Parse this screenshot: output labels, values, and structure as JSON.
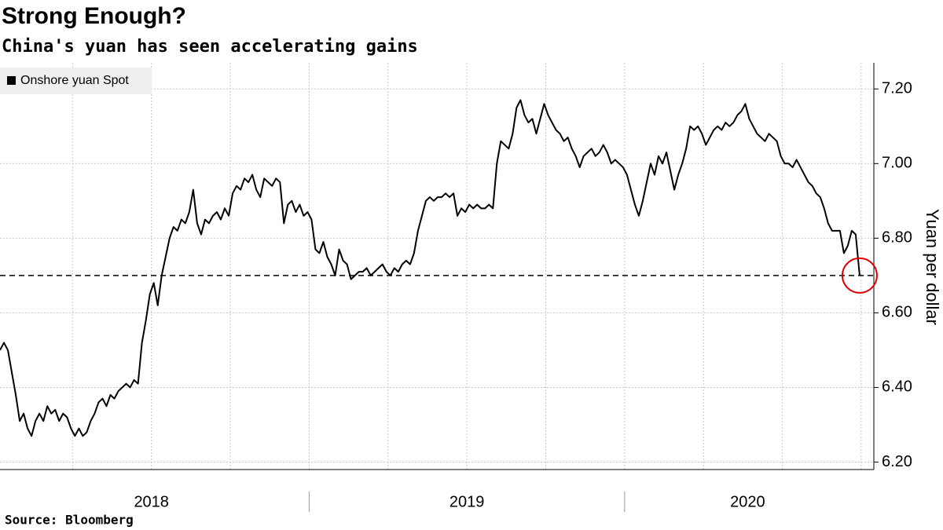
{
  "chart_data": {
    "type": "line",
    "title": "Strong Enough?",
    "subtitle": "China's yuan has seen accelerating gains",
    "source": "Source: Bloomberg",
    "y_axis_label": "Yuan per dollar",
    "legend": "top-left",
    "grid": true,
    "reference_line": 6.7,
    "highlight_color": "#e00000",
    "xlim": [
      2018.02,
      2020.79
    ],
    "xticks": [
      {
        "value": 2018.5,
        "label": "2018"
      },
      {
        "value": 2019.5,
        "label": "2019"
      },
      {
        "value": 2020.39,
        "label": "2020"
      }
    ],
    "year_boundaries": [
      2019,
      2020
    ],
    "xgrid": [
      2018.25,
      2018.5,
      2018.75,
      2019,
      2019.25,
      2019.5,
      2019.75,
      2020,
      2020.25,
      2020.5,
      2020.75
    ],
    "ylim": [
      6.18,
      7.27
    ],
    "yticks": [
      {
        "value": 6.2,
        "label": "6.20"
      },
      {
        "value": 6.4,
        "label": "6.40"
      },
      {
        "value": 6.6,
        "label": "6.60"
      },
      {
        "value": 6.8,
        "label": "6.80"
      },
      {
        "value": 7.0,
        "label": "7.00"
      },
      {
        "value": 7.2,
        "label": "7.20"
      }
    ],
    "x": [
      2018.02,
      2018.0325,
      2018.045,
      2018.0575,
      2018.07,
      2018.0825,
      2018.095,
      2018.1075,
      2018.12,
      2018.1325,
      2018.145,
      2018.1575,
      2018.17,
      2018.1825,
      2018.195,
      2018.2075,
      2018.22,
      2018.2325,
      2018.245,
      2018.2575,
      2018.27,
      2018.2825,
      2018.295,
      2018.3075,
      2018.32,
      2018.3325,
      2018.345,
      2018.3575,
      2018.37,
      2018.3825,
      2018.395,
      2018.4075,
      2018.42,
      2018.4325,
      2018.445,
      2018.4575,
      2018.47,
      2018.4825,
      2018.495,
      2018.5075,
      2018.52,
      2018.5325,
      2018.545,
      2018.5575,
      2018.57,
      2018.5825,
      2018.595,
      2018.6075,
      2018.62,
      2018.6325,
      2018.645,
      2018.6575,
      2018.67,
      2018.6825,
      2018.695,
      2018.7075,
      2018.72,
      2018.7325,
      2018.745,
      2018.7575,
      2018.77,
      2018.7825,
      2018.795,
      2018.8075,
      2018.82,
      2018.8325,
      2018.845,
      2018.8575,
      2018.87,
      2018.8825,
      2018.895,
      2018.9075,
      2018.92,
      2018.9325,
      2018.945,
      2018.9575,
      2018.97,
      2018.9825,
      2018.995,
      2019.0075,
      2019.02,
      2019.0325,
      2019.045,
      2019.0575,
      2019.07,
      2019.0825,
      2019.095,
      2019.1075,
      2019.12,
      2019.1325,
      2019.145,
      2019.1575,
      2019.17,
      2019.1825,
      2019.195,
      2019.2075,
      2019.22,
      2019.2325,
      2019.245,
      2019.2575,
      2019.27,
      2019.2825,
      2019.295,
      2019.3075,
      2019.32,
      2019.3325,
      2019.345,
      2019.3575,
      2019.37,
      2019.3825,
      2019.395,
      2019.4075,
      2019.42,
      2019.4325,
      2019.445,
      2019.4575,
      2019.47,
      2019.4825,
      2019.495,
      2019.5075,
      2019.52,
      2019.5325,
      2019.545,
      2019.5575,
      2019.57,
      2019.5825,
      2019.595,
      2019.6075,
      2019.62,
      2019.6325,
      2019.645,
      2019.6575,
      2019.67,
      2019.6825,
      2019.695,
      2019.7075,
      2019.72,
      2019.7325,
      2019.745,
      2019.7575,
      2019.77,
      2019.7825,
      2019.795,
      2019.8075,
      2019.82,
      2019.8325,
      2019.845,
      2019.8575,
      2019.87,
      2019.8825,
      2019.895,
      2019.9075,
      2019.92,
      2019.9325,
      2019.945,
      2019.9575,
      2019.97,
      2019.9825,
      2019.995,
      2020.0075,
      2020.02,
      2020.0325,
      2020.045,
      2020.0575,
      2020.07,
      2020.0825,
      2020.095,
      2020.1075,
      2020.12,
      2020.1325,
      2020.145,
      2020.1575,
      2020.17,
      2020.1825,
      2020.195,
      2020.2075,
      2020.22,
      2020.2325,
      2020.245,
      2020.2575,
      2020.27,
      2020.2825,
      2020.295,
      2020.3075,
      2020.32,
      2020.3325,
      2020.345,
      2020.3575,
      2020.37,
      2020.3825,
      2020.395,
      2020.4075,
      2020.42,
      2020.4325,
      2020.445,
      2020.4575,
      2020.47,
      2020.4825,
      2020.495,
      2020.5075,
      2020.52,
      2020.5325,
      2020.545,
      2020.5575,
      2020.57,
      2020.5825,
      2020.595,
      2020.6075,
      2020.62,
      2020.6325,
      2020.645,
      2020.6575,
      2020.67,
      2020.6825,
      2020.695,
      2020.7075,
      2020.72,
      2020.7325,
      2020.745
    ],
    "series": [
      {
        "name": "Onshore yuan Spot",
        "color": "#000000",
        "values": [
          6.5,
          6.52,
          6.5,
          6.44,
          6.38,
          6.31,
          6.33,
          6.29,
          6.27,
          6.31,
          6.33,
          6.31,
          6.35,
          6.33,
          6.34,
          6.31,
          6.33,
          6.32,
          6.29,
          6.27,
          6.29,
          6.27,
          6.28,
          6.31,
          6.33,
          6.36,
          6.37,
          6.35,
          6.38,
          6.37,
          6.39,
          6.4,
          6.41,
          6.4,
          6.42,
          6.41,
          6.52,
          6.58,
          6.65,
          6.68,
          6.62,
          6.7,
          6.75,
          6.8,
          6.83,
          6.82,
          6.85,
          6.84,
          6.87,
          6.93,
          6.84,
          6.81,
          6.85,
          6.84,
          6.86,
          6.87,
          6.85,
          6.88,
          6.86,
          6.92,
          6.94,
          6.93,
          6.96,
          6.95,
          6.97,
          6.93,
          6.91,
          6.96,
          6.95,
          6.94,
          6.96,
          6.95,
          6.84,
          6.89,
          6.9,
          6.87,
          6.89,
          6.86,
          6.87,
          6.85,
          6.77,
          6.76,
          6.79,
          6.75,
          6.73,
          6.7,
          6.77,
          6.74,
          6.73,
          6.69,
          6.7,
          6.71,
          6.71,
          6.72,
          6.7,
          6.71,
          6.72,
          6.73,
          6.71,
          6.7,
          6.72,
          6.71,
          6.73,
          6.74,
          6.73,
          6.76,
          6.82,
          6.86,
          6.9,
          6.91,
          6.9,
          6.91,
          6.91,
          6.92,
          6.91,
          6.92,
          6.86,
          6.88,
          6.87,
          6.89,
          6.88,
          6.89,
          6.88,
          6.88,
          6.89,
          6.88,
          7.0,
          7.06,
          7.05,
          7.04,
          7.08,
          7.15,
          7.17,
          7.13,
          7.11,
          7.12,
          7.08,
          7.12,
          7.16,
          7.13,
          7.11,
          7.09,
          7.08,
          7.06,
          7.07,
          7.04,
          7.02,
          6.99,
          7.02,
          7.03,
          7.04,
          7.02,
          7.03,
          7.05,
          7.03,
          7.0,
          7.01,
          7.0,
          6.99,
          6.97,
          6.93,
          6.89,
          6.86,
          6.9,
          6.95,
          7.0,
          6.97,
          7.02,
          7.0,
          7.03,
          6.98,
          6.93,
          6.97,
          7.0,
          7.04,
          7.1,
          7.09,
          7.1,
          7.08,
          7.05,
          7.07,
          7.09,
          7.1,
          7.09,
          7.11,
          7.1,
          7.11,
          7.13,
          7.14,
          7.16,
          7.12,
          7.1,
          7.08,
          7.07,
          7.06,
          7.08,
          7.07,
          7.06,
          7.02,
          7.0,
          7.0,
          6.99,
          7.01,
          6.99,
          6.97,
          6.95,
          6.94,
          6.92,
          6.91,
          6.88,
          6.84,
          6.82,
          6.82,
          6.82,
          6.76,
          6.78,
          6.82,
          6.81,
          6.7
        ]
      }
    ]
  }
}
